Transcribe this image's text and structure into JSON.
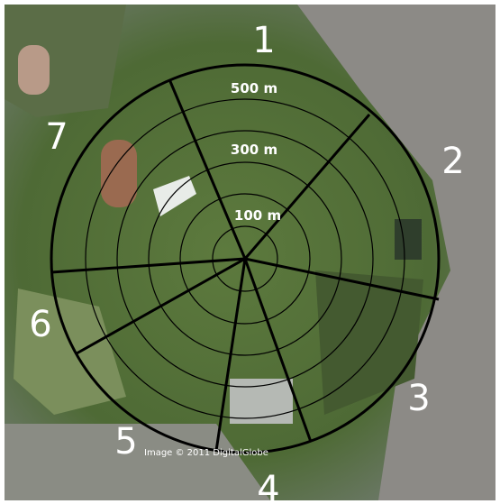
{
  "map": {
    "distance_labels": [
      "500 m",
      "300 m",
      "100 m"
    ],
    "sector_labels": [
      "1",
      "2",
      "3",
      "4",
      "5",
      "6",
      "7"
    ],
    "credit": "Image © 2011 DigitalGlobe"
  }
}
